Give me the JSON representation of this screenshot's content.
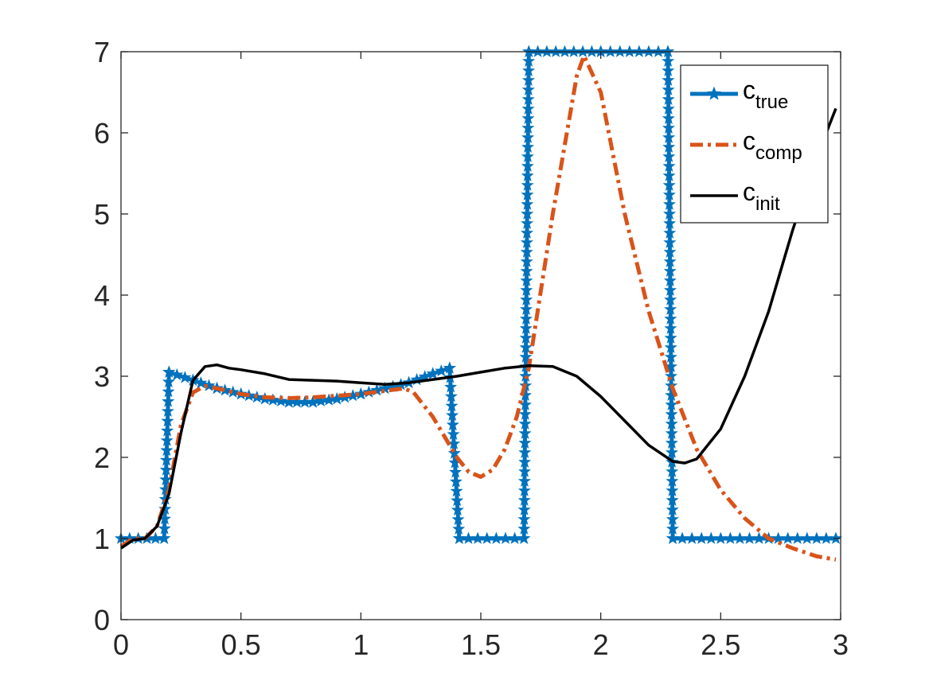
{
  "chart_data": {
    "type": "line",
    "title": "",
    "xlabel": "",
    "ylabel": "",
    "xlim": [
      0,
      3
    ],
    "ylim": [
      0,
      7
    ],
    "xticks": [
      "0",
      "0.5",
      "1",
      "1.5",
      "2",
      "2.5",
      "3"
    ],
    "yticks": [
      "0",
      "1",
      "2",
      "3",
      "4",
      "5",
      "6",
      "7"
    ],
    "grid": false,
    "legend_position": "top-right",
    "series": [
      {
        "name": "c_true",
        "legend_main": "c",
        "legend_sub": "true",
        "color": "#0072BD",
        "style": "solid-star",
        "x": [
          0,
          0.18,
          0.2,
          0.3,
          0.4,
          0.5,
          0.6,
          0.7,
          0.8,
          0.9,
          1.0,
          1.1,
          1.2,
          1.3,
          1.37,
          1.41,
          1.68,
          1.7,
          2.0,
          2.28,
          2.3,
          2.98
        ],
        "y": [
          1,
          1,
          3.05,
          2.95,
          2.85,
          2.78,
          2.72,
          2.68,
          2.68,
          2.72,
          2.78,
          2.85,
          2.92,
          3.03,
          3.1,
          1,
          1,
          7,
          7,
          7,
          1,
          1
        ]
      },
      {
        "name": "c_comp",
        "legend_main": "c",
        "legend_sub": "comp",
        "color": "#D95319",
        "style": "dashdot",
        "x": [
          0,
          0.05,
          0.1,
          0.15,
          0.2,
          0.25,
          0.3,
          0.35,
          0.4,
          0.5,
          0.6,
          0.7,
          0.8,
          0.9,
          1.0,
          1.1,
          1.18,
          1.22,
          1.3,
          1.4,
          1.45,
          1.5,
          1.55,
          1.6,
          1.65,
          1.7,
          1.8,
          1.9,
          1.93,
          2.0,
          2.1,
          2.2,
          2.3,
          2.4,
          2.5,
          2.6,
          2.7,
          2.8,
          2.9,
          2.98
        ],
        "y": [
          0.9,
          1.0,
          1.0,
          1.15,
          1.6,
          2.4,
          2.8,
          2.88,
          2.85,
          2.78,
          2.74,
          2.73,
          2.74,
          2.76,
          2.78,
          2.82,
          2.85,
          2.8,
          2.5,
          2.0,
          1.82,
          1.76,
          1.85,
          2.1,
          2.5,
          3.1,
          5.0,
          6.7,
          6.95,
          6.5,
          5.0,
          3.8,
          2.85,
          2.1,
          1.6,
          1.25,
          1.0,
          0.88,
          0.78,
          0.74
        ]
      },
      {
        "name": "c_init",
        "legend_main": "c",
        "legend_sub": "init",
        "color": "#000000",
        "style": "solid",
        "x": [
          0,
          0.05,
          0.1,
          0.15,
          0.2,
          0.25,
          0.3,
          0.35,
          0.4,
          0.45,
          0.5,
          0.6,
          0.7,
          0.8,
          0.9,
          1.0,
          1.1,
          1.2,
          1.3,
          1.4,
          1.5,
          1.6,
          1.7,
          1.8,
          1.9,
          2.0,
          2.1,
          2.2,
          2.3,
          2.35,
          2.4,
          2.5,
          2.6,
          2.7,
          2.8,
          2.9,
          2.98
        ],
        "y": [
          0.88,
          0.98,
          1.0,
          1.15,
          1.55,
          2.3,
          2.95,
          3.12,
          3.14,
          3.1,
          3.08,
          3.03,
          2.96,
          2.95,
          2.94,
          2.92,
          2.9,
          2.92,
          2.96,
          3.0,
          3.05,
          3.1,
          3.13,
          3.12,
          3.0,
          2.75,
          2.45,
          2.15,
          1.95,
          1.93,
          1.98,
          2.35,
          3.0,
          3.8,
          4.8,
          5.7,
          6.3
        ]
      }
    ]
  }
}
